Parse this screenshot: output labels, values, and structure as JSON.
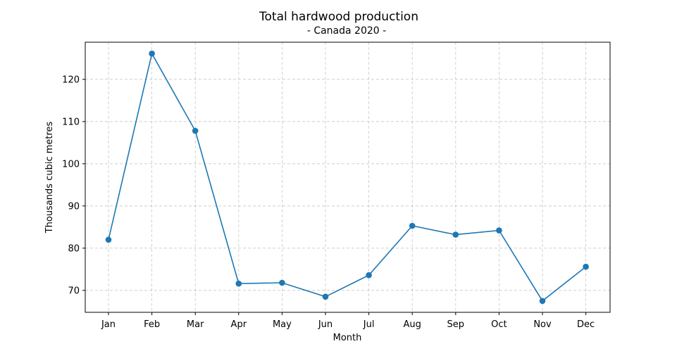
{
  "chart_data": {
    "type": "line",
    "title": "Total hardwood production",
    "subtitle": "- Canada 2020 -",
    "xlabel": "Month",
    "ylabel": "Thousands cubic metres",
    "categories": [
      "Jan",
      "Feb",
      "Mar",
      "Apr",
      "May",
      "Jun",
      "Jul",
      "Aug",
      "Sep",
      "Oct",
      "Nov",
      "Dec"
    ],
    "series": [
      {
        "values": [
          82.0,
          126.1,
          107.8,
          71.6,
          71.8,
          68.5,
          73.6,
          85.3,
          83.2,
          84.2,
          67.5,
          75.6
        ]
      }
    ],
    "yticks": [
      70,
      80,
      90,
      100,
      110,
      120
    ],
    "ylim": [
      64.8,
      128.8
    ],
    "grid": true,
    "line_color": "#1f77b4"
  }
}
